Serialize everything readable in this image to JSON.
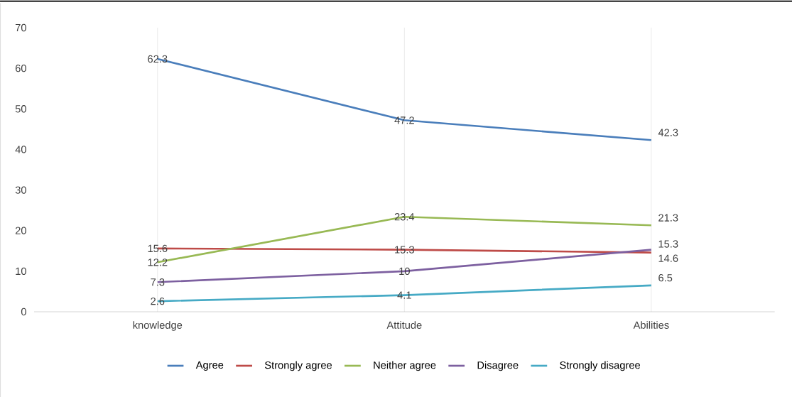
{
  "chart_data": {
    "type": "line",
    "categories": [
      "knowledge",
      "Attitude",
      "Abilities"
    ],
    "series": [
      {
        "name": "Agree",
        "color": "#4a7ebb",
        "values": [
          62.3,
          47.2,
          42.3
        ]
      },
      {
        "name": "Strongly agree",
        "color": "#be4b48",
        "values": [
          15.6,
          15.3,
          14.6
        ]
      },
      {
        "name": "Neither agree",
        "color": "#98b954",
        "values": [
          12.2,
          23.4,
          21.3
        ]
      },
      {
        "name": "Disagree",
        "color": "#7d60a0",
        "values": [
          7.3,
          10,
          15.3
        ]
      },
      {
        "name": "Strongly disagree",
        "color": "#46aac5",
        "values": [
          2.6,
          4.1,
          6.5
        ]
      }
    ],
    "ylim": [
      0,
      70
    ],
    "yticks": [
      0,
      10,
      20,
      30,
      40,
      50,
      60,
      70
    ],
    "grid": "x",
    "legend": "bottom",
    "marker": "none",
    "line_style": "solid",
    "data_labels": true
  }
}
